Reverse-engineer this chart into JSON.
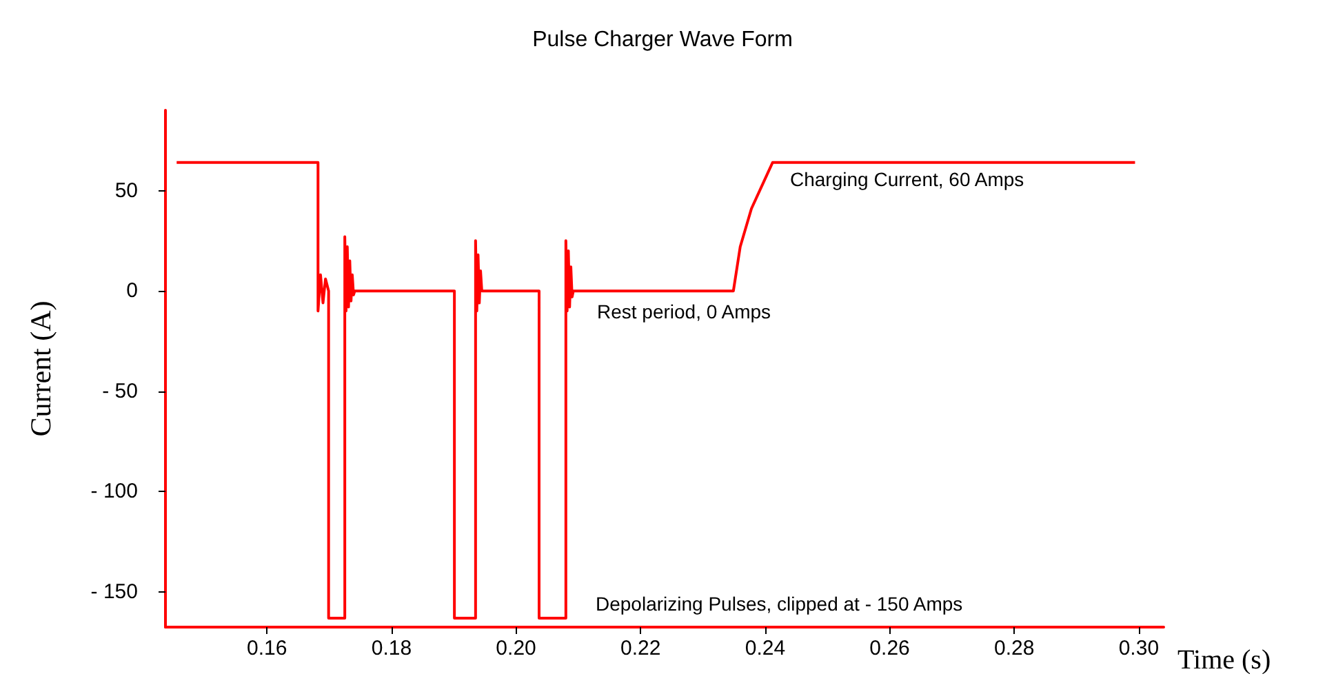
{
  "chart_data": {
    "type": "line",
    "title": "Pulse Charger Wave Form",
    "xlabel": "Time (s)",
    "ylabel": "Current (A)",
    "xlim": [
      0.1437,
      0.304
    ],
    "xticks": [
      0.16,
      0.18,
      {
        "value": 0.2,
        "label": "0.20"
      },
      0.22,
      0.24,
      0.26,
      0.28,
      {
        "value": 0.3,
        "label": "0.30"
      }
    ],
    "ylim": [
      -167.5,
      90
    ],
    "yticks": [
      {
        "value": -150,
        "label": "- 150"
      },
      {
        "value": -100,
        "label": "- 100"
      },
      {
        "value": -50,
        "label": "- 50"
      },
      0,
      50
    ],
    "grid": false,
    "marker": "none",
    "line_style": "solid",
    "series": [
      {
        "color": "#ff0000",
        "x": [
          0.1455,
          0.1682,
          0.1682,
          0.1686,
          0.169,
          0.1694,
          0.1699,
          0.1699,
          0.1725,
          0.1725,
          0.1727,
          0.1729,
          0.1731,
          0.1733,
          0.1735,
          0.1737,
          0.1739,
          0.1741,
          0.1901,
          0.1901,
          0.1935,
          0.1935,
          0.1937,
          0.1939,
          0.1941,
          0.1943,
          0.1945,
          0.2037,
          0.2037,
          0.208,
          0.208,
          0.2082,
          0.2084,
          0.2086,
          0.2088,
          0.209,
          0.2092,
          0.2349,
          0.236,
          0.2378,
          0.2412,
          0.2994
        ],
        "values": [
          64,
          64,
          -10,
          8,
          -6,
          6,
          0,
          -163,
          -163,
          27,
          -10,
          22,
          -8,
          15,
          -5,
          8,
          -2,
          0,
          0,
          -163,
          -163,
          25,
          -10,
          18,
          -6,
          10,
          0,
          0,
          -163,
          -163,
          25,
          -10,
          20,
          -8,
          12,
          -3,
          0,
          0,
          22,
          41,
          64,
          64
        ]
      }
    ],
    "annotations": [
      "Charging Current, 60 Amps",
      "Rest period, 0 Amps",
      "Depolarizing Pulses, clipped at - 150 Amps"
    ]
  }
}
